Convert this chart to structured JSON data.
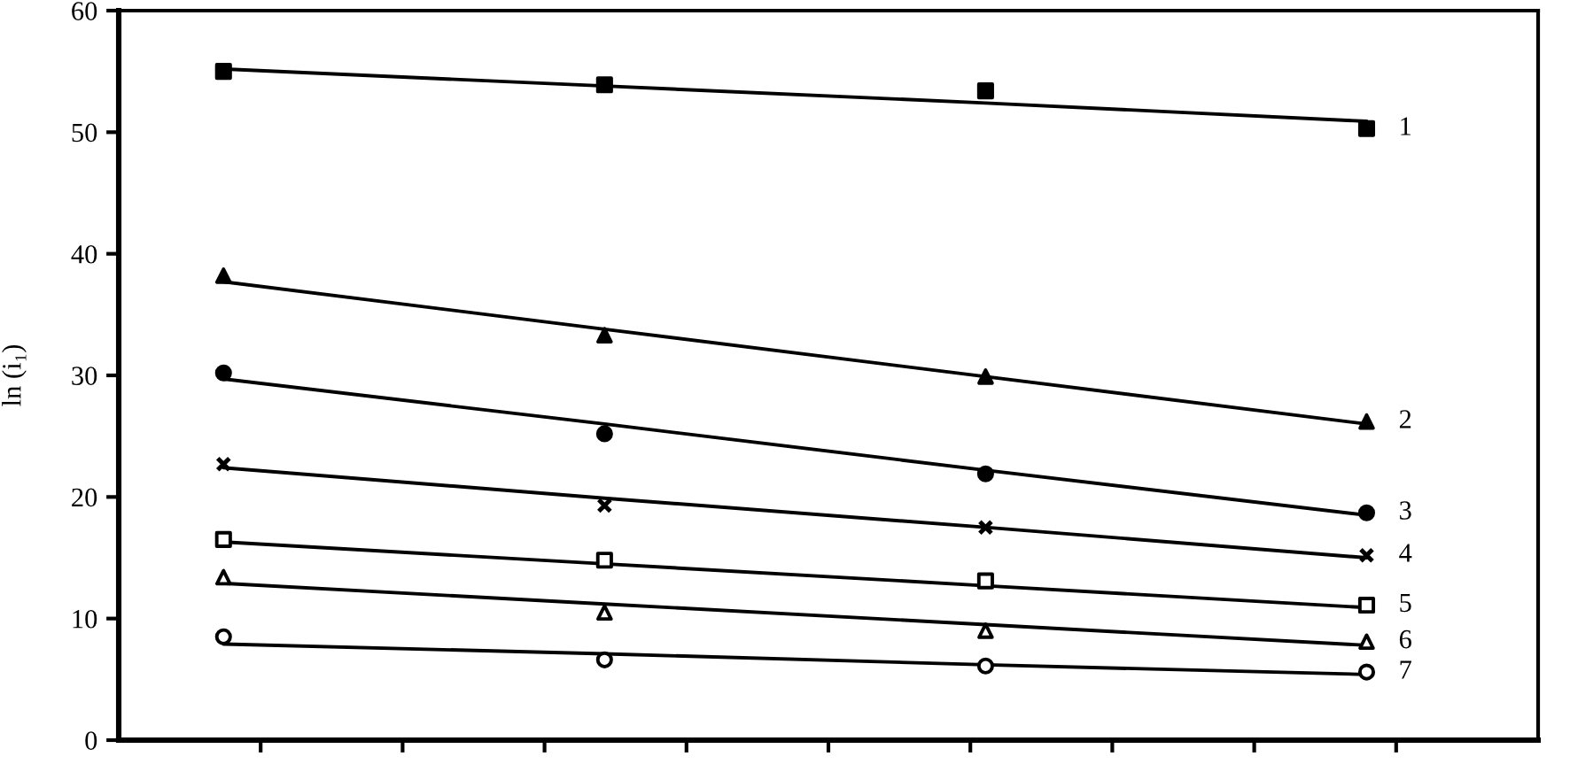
{
  "chart_data": {
    "type": "scatter",
    "ylabel": "ln (i₁)",
    "categories": [
      null,
      null,
      null,
      null
    ],
    "ylim": [
      0,
      60
    ],
    "yticks": [
      0,
      10,
      20,
      30,
      40,
      50,
      60
    ],
    "series": [
      {
        "name": "1",
        "type": "scatter",
        "marker": "square",
        "color": "#000000",
        "values": [
          55.0,
          53.9,
          53.4,
          50.3
        ]
      },
      {
        "type": "line",
        "marker": "none",
        "color": "#000000",
        "values": [
          55.2,
          53.8,
          52.4,
          50.9
        ]
      },
      {
        "name": "2",
        "type": "scatter",
        "marker": "triangle",
        "color": "#000000",
        "values": [
          38.2,
          33.3,
          29.9,
          26.2
        ]
      },
      {
        "type": "line",
        "marker": "none",
        "color": "#000000",
        "values": [
          37.7,
          33.8,
          29.9,
          26.0
        ]
      },
      {
        "name": "3",
        "type": "scatter",
        "marker": "circle",
        "color": "#000000",
        "values": [
          30.2,
          25.2,
          21.9,
          18.7
        ]
      },
      {
        "type": "line",
        "marker": "none",
        "color": "#000000",
        "values": [
          29.7,
          26.0,
          22.2,
          18.5
        ]
      },
      {
        "name": "4",
        "type": "scatter",
        "marker": "cross",
        "color": "#000000",
        "values": [
          22.7,
          19.3,
          17.5,
          15.2
        ]
      },
      {
        "type": "line",
        "marker": "none",
        "color": "#000000",
        "values": [
          22.4,
          19.9,
          17.5,
          15.0
        ]
      },
      {
        "name": "5",
        "type": "scatter",
        "marker": "square",
        "color": "#ffffff",
        "values": [
          16.5,
          14.8,
          13.1,
          11.1
        ]
      },
      {
        "type": "line",
        "marker": "none",
        "color": "#000000",
        "values": [
          16.3,
          14.5,
          12.7,
          10.9
        ]
      },
      {
        "name": "6",
        "type": "scatter",
        "marker": "triangle",
        "color": "#ffffff",
        "values": [
          13.4,
          10.5,
          9.0,
          8.1
        ]
      },
      {
        "type": "line",
        "marker": "none",
        "color": "#000000",
        "values": [
          12.9,
          11.2,
          9.5,
          7.8
        ]
      },
      {
        "name": "7",
        "type": "scatter",
        "marker": "circle",
        "color": "#ffffff",
        "values": [
          8.5,
          6.6,
          6.1,
          5.6
        ]
      },
      {
        "type": "line",
        "marker": "none",
        "color": "#000000",
        "values": [
          7.9,
          7.1,
          6.2,
          5.4
        ]
      }
    ]
  }
}
